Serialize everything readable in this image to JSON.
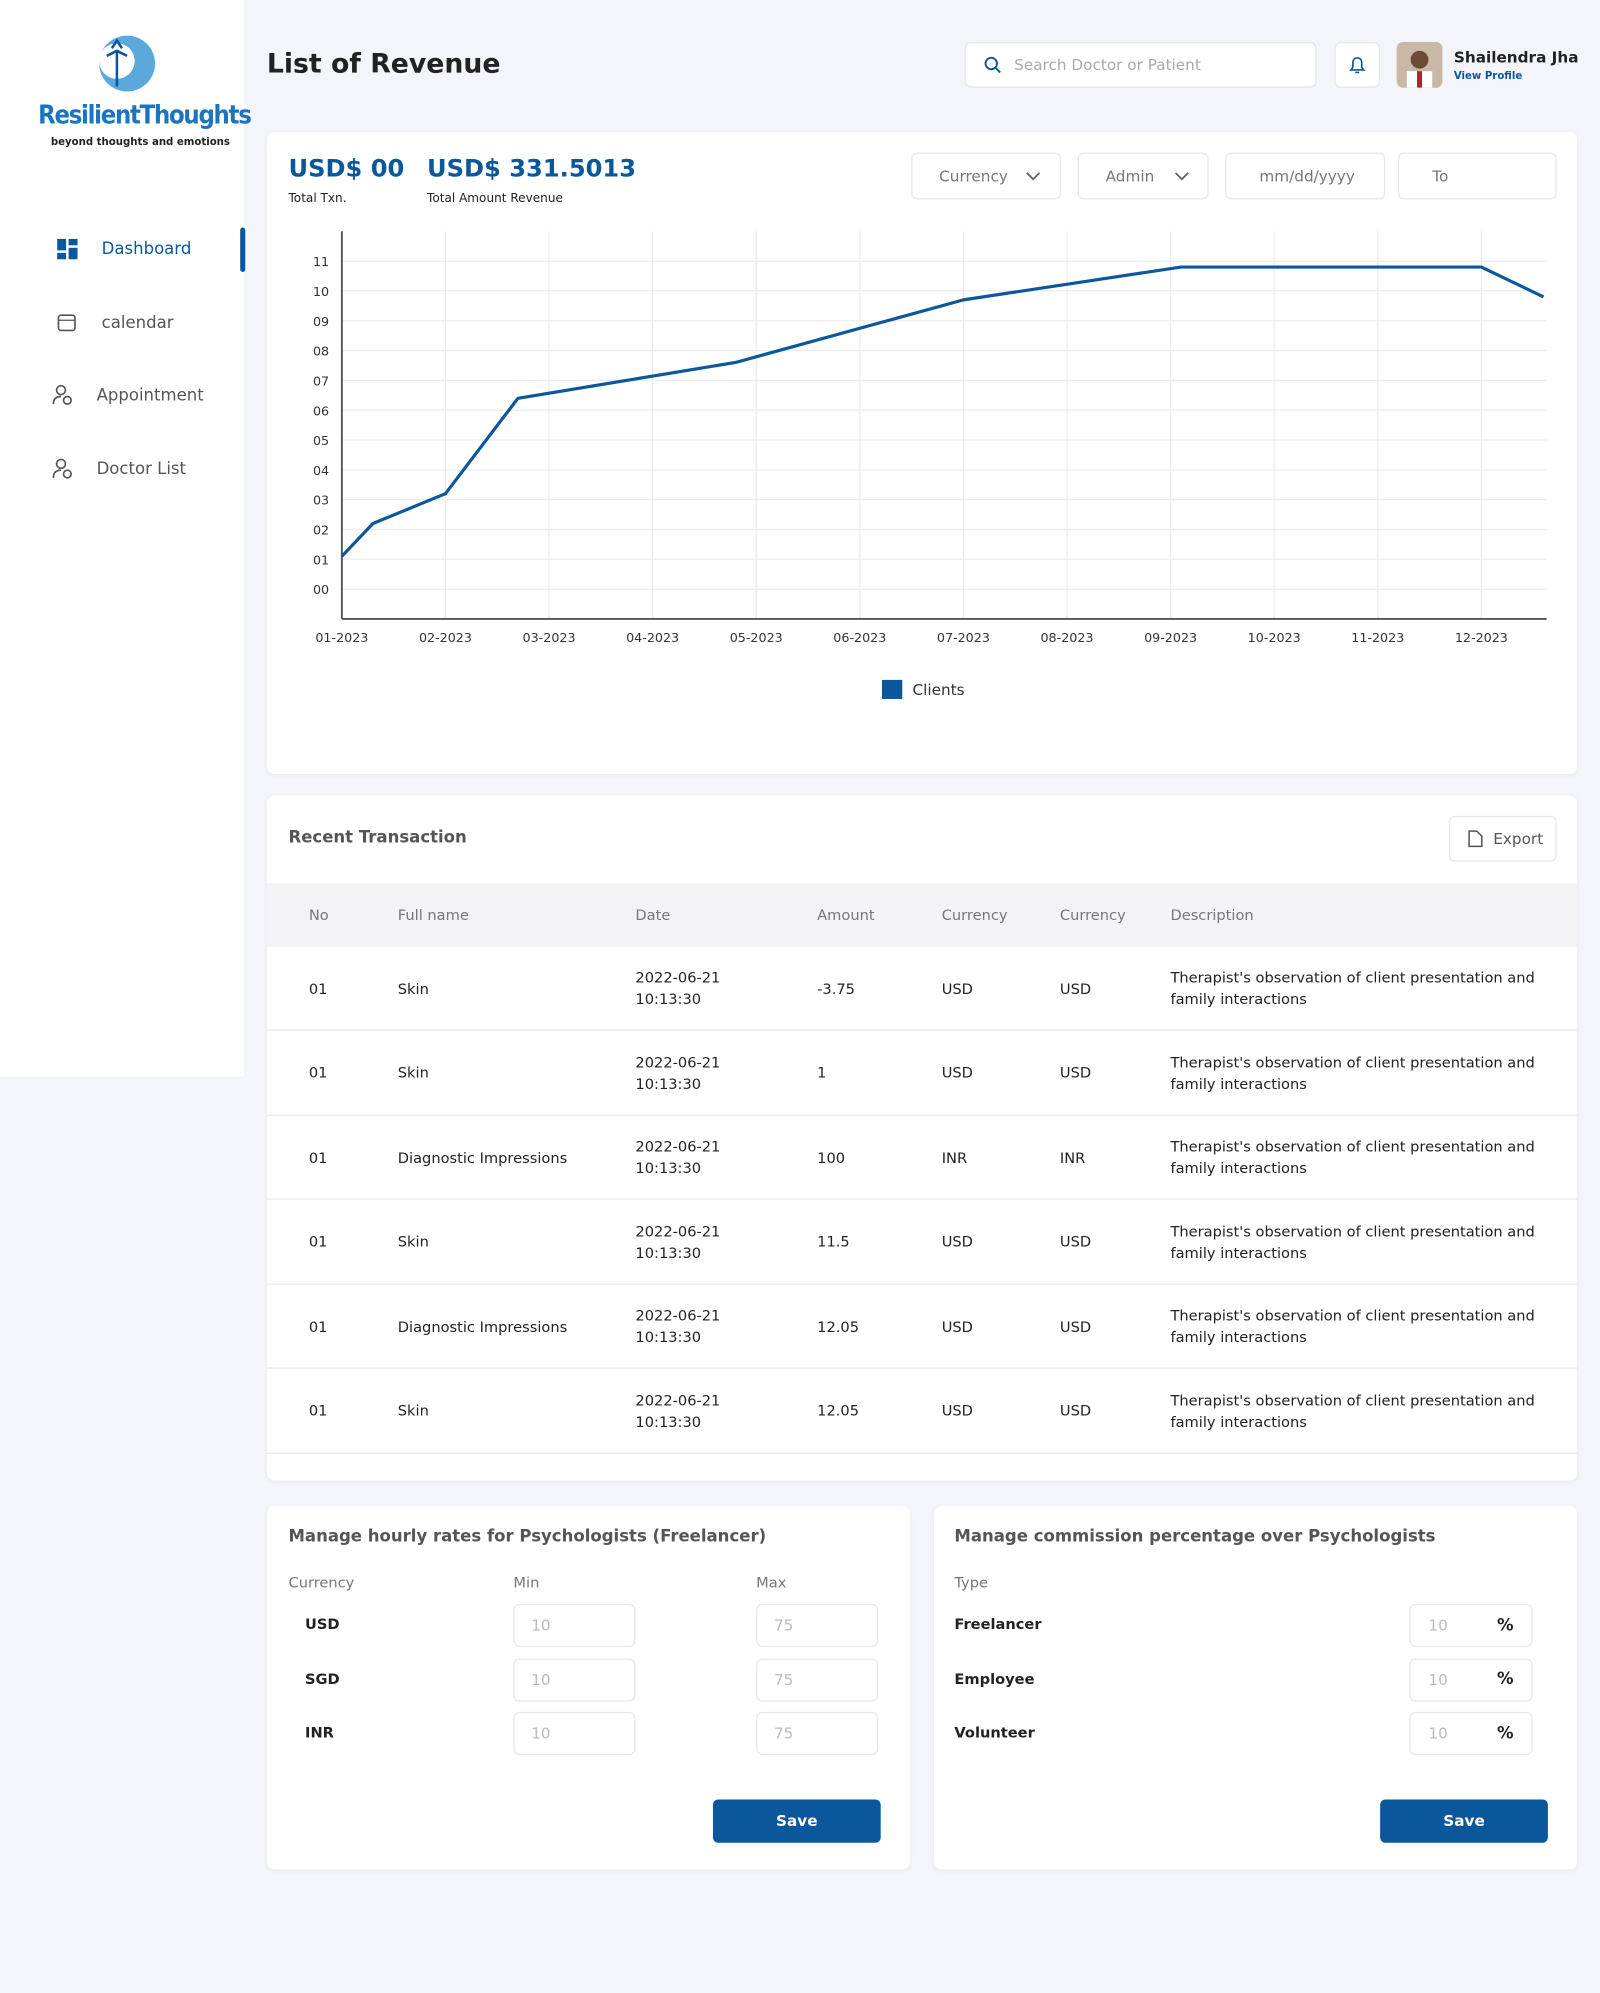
{
  "logo": {
    "name": "ResilientThoughts",
    "tagline": "beyond thoughts and emotions"
  },
  "nav": [
    "Dashboard",
    "calendar",
    "Appointment",
    "Doctor List"
  ],
  "header": {
    "title": "List of Revenue",
    "search_placeholder": "Search Doctor or Patient",
    "user_name": "Shailendra Jha",
    "user_link": "View Profile"
  },
  "summary": {
    "txn_value": "USD$ 00",
    "txn_label": "Total Txn.",
    "revenue_value": "USD$ 331.5013",
    "revenue_label": "Total Amount Revenue"
  },
  "filters": {
    "currency": "Currency",
    "admin": "Admin",
    "date_from": "mm/dd/yyyy",
    "date_to": "To"
  },
  "chart_data": {
    "type": "line",
    "x": [
      1,
      1.3,
      2,
      2.7,
      4.8,
      7,
      9.1,
      12,
      12.6
    ],
    "series": [
      {
        "name": "Clients",
        "color": "#0b579c",
        "values": [
          1.1,
          2.2,
          3.2,
          6.4,
          7.6,
          9.7,
          10.8,
          10.8,
          9.8
        ]
      }
    ],
    "xlim": [
      1,
      12.63
    ],
    "xticks": [
      {
        "value": 1,
        "label": "01-2023"
      },
      {
        "value": 2,
        "label": "02-2023"
      },
      {
        "value": 3,
        "label": "03-2023"
      },
      {
        "value": 4,
        "label": "04-2023"
      },
      {
        "value": 5,
        "label": "05-2023"
      },
      {
        "value": 6,
        "label": "06-2023"
      },
      {
        "value": 7,
        "label": "07-2023"
      },
      {
        "value": 8,
        "label": "08-2023"
      },
      {
        "value": 9,
        "label": "09-2023"
      },
      {
        "value": 10,
        "label": "10-2023"
      },
      {
        "value": 11,
        "label": "11-2023"
      },
      {
        "value": 12,
        "label": "12-2023"
      }
    ],
    "ylim": [
      -1,
      12
    ],
    "yticks": [
      {
        "value": 0,
        "label": "00"
      },
      {
        "value": 1,
        "label": "01"
      },
      {
        "value": 2,
        "label": "02"
      },
      {
        "value": 3,
        "label": "03"
      },
      {
        "value": 4,
        "label": "04"
      },
      {
        "value": 5,
        "label": "05"
      },
      {
        "value": 6,
        "label": "06"
      },
      {
        "value": 7,
        "label": "07"
      },
      {
        "value": 8,
        "label": "08"
      },
      {
        "value": 9,
        "label": "09"
      },
      10,
      11
    ],
    "grid": true,
    "legend": "bottom"
  },
  "transactions": {
    "title": "Recent Transaction",
    "export": "Export",
    "columns": [
      "No",
      "Full name",
      "Date",
      "Amount",
      "Currency",
      "Currency",
      "Description"
    ],
    "rows": [
      [
        "01",
        "Skin",
        "2022-06-21 10:13:30",
        "-3.75",
        "USD",
        "USD",
        "Therapist's observation of client presentation and family interactions"
      ],
      [
        "01",
        "Skin",
        "2022-06-21 10:13:30",
        "1",
        "USD",
        "USD",
        "Therapist's observation of client presentation and family interactions"
      ],
      [
        "01",
        "Diagnostic Impressions",
        "2022-06-21 10:13:30",
        "100",
        "INR",
        "INR",
        "Therapist's observation of client presentation and family interactions"
      ],
      [
        "01",
        "Skin",
        "2022-06-21 10:13:30",
        "11.5",
        "USD",
        "USD",
        "Therapist's observation of client presentation and family interactions"
      ],
      [
        "01",
        "Diagnostic Impressions",
        "2022-06-21 10:13:30",
        "12.05",
        "USD",
        "USD",
        "Therapist's observation of client presentation and family interactions"
      ],
      [
        "01",
        "Skin",
        "2022-06-21 10:13:30",
        "12.05",
        "USD",
        "USD",
        "Therapist's observation of client presentation and family interactions"
      ]
    ]
  },
  "rates": {
    "title": "Manage hourly rates for Psychologists (Freelancer)",
    "columns": [
      "Currency",
      "Min",
      "Max"
    ],
    "rows": [
      [
        "USD",
        "10",
        "75"
      ],
      [
        "SGD",
        "10",
        "75"
      ],
      [
        "INR",
        "10",
        "75"
      ]
    ],
    "save": "Save"
  },
  "commission": {
    "title": "Manage commission percentage over Psychologists",
    "column": "Type",
    "percent_sign": "%",
    "rows": [
      [
        "Freelancer",
        "10"
      ],
      [
        "Employee",
        "10"
      ],
      [
        "Volunteer",
        "10"
      ]
    ],
    "save": "Save"
  }
}
